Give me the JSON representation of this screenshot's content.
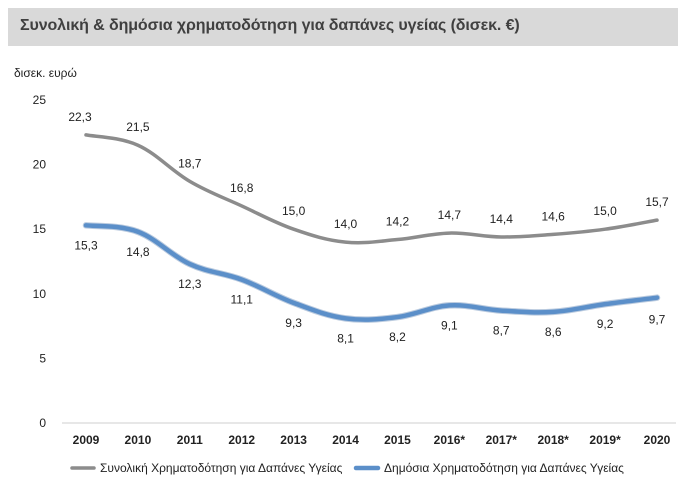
{
  "chart_data": {
    "type": "line",
    "title": "Συνολική & δημόσια χρηματοδότηση για δαπάνες υγείας (δισεκ. €)",
    "ylabel": "δισεκ. ευρώ",
    "xlabel": "",
    "ylim": [
      0,
      25
    ],
    "yticks": [
      "0",
      "5",
      "10",
      "15",
      "20",
      "25"
    ],
    "categories": [
      "2009",
      "2010",
      "2011",
      "2012",
      "2013",
      "2014",
      "2015",
      "2016*",
      "2017*",
      "2018*",
      "2019*",
      "2020"
    ],
    "series": [
      {
        "name": "Συνολική Χρηματοδότηση για Δαπάνες Υγείας",
        "color": "#8c8c8c",
        "values": [
          22.3,
          21.5,
          18.7,
          16.8,
          15.0,
          14.0,
          14.2,
          14.7,
          14.4,
          14.6,
          15.0,
          15.7
        ],
        "labels": [
          "22,3",
          "21,5",
          "18,7",
          "16,8",
          "15,0",
          "14,0",
          "14,2",
          "14,7",
          "14,4",
          "14,6",
          "15,0",
          "15,7"
        ]
      },
      {
        "name": "Δημόσια Χρηματοδότηση για Δαπάνες Υγείας",
        "color": "#5b8fc9",
        "values": [
          15.3,
          14.8,
          12.3,
          11.1,
          9.3,
          8.1,
          8.2,
          9.1,
          8.7,
          8.6,
          9.2,
          9.7
        ],
        "labels": [
          "15,3",
          "14,8",
          "12,3",
          "11,1",
          "9,3",
          "8,1",
          "8,2",
          "9,1",
          "8,7",
          "8,6",
          "9,2",
          "9,7"
        ]
      }
    ],
    "grid": false,
    "legend": "bottom"
  }
}
